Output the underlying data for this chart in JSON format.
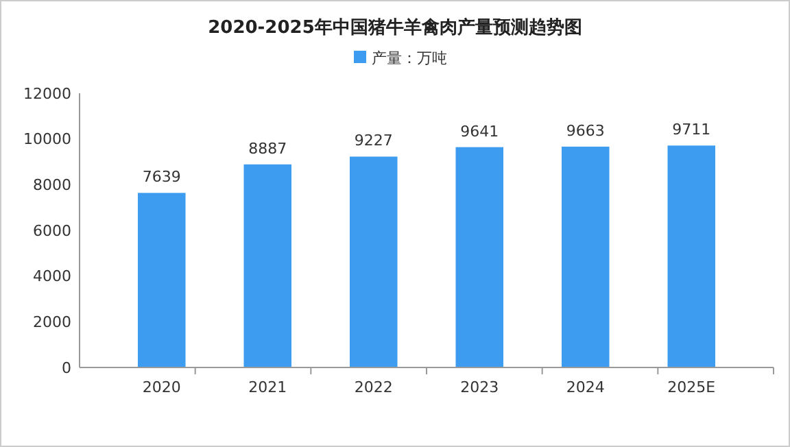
{
  "chart_data": {
    "type": "bar",
    "title": "2020-2025年中国猪牛羊禽肉产量预测趋势图",
    "categories": [
      "2020",
      "2021",
      "2022",
      "2023",
      "2024",
      "2025E"
    ],
    "series": [
      {
        "name": "产量：万吨",
        "color": "#3d9cf0",
        "values": [
          7639,
          8887,
          9227,
          9641,
          9663,
          9711
        ]
      }
    ],
    "ylim": [
      0,
      12000
    ],
    "yticks": [
      0,
      2000,
      4000,
      6000,
      8000,
      10000,
      12000
    ],
    "data_labels": true,
    "legend": "top",
    "grid": false
  }
}
